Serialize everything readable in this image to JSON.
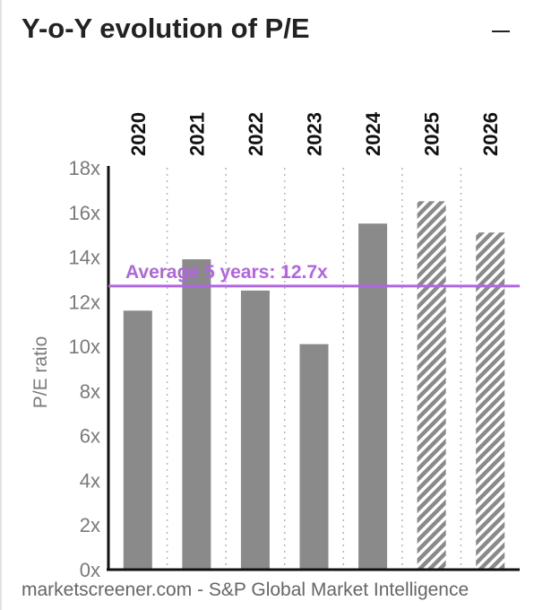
{
  "widget": {
    "title": "Y-o-Y evolution of P/E",
    "source": "marketscreener.com - S&P Global Market Intelligence"
  },
  "colors": {
    "bar": "#8a8a8a",
    "forecast_hatch": "#8a8a8a",
    "average_line": "#b066e0",
    "axis": "#111111",
    "tick_label": "#7a7a7a",
    "year_label": "#111111",
    "grid": "#b5b5b5"
  },
  "chart_data": {
    "type": "bar",
    "categories": [
      "2020",
      "2021",
      "2022",
      "2023",
      "2024",
      "2025",
      "2026"
    ],
    "values": [
      11.6,
      13.9,
      12.5,
      10.1,
      15.5,
      16.5,
      15.1
    ],
    "forecast": [
      false,
      false,
      false,
      false,
      false,
      true,
      true
    ],
    "ylabel": "P/E ratio",
    "ylim": [
      0,
      18
    ],
    "yticks": [
      "0x",
      "2x",
      "4x",
      "6x",
      "8x",
      "10x",
      "12x",
      "14x",
      "16x",
      "18x"
    ],
    "average": {
      "label": "Average 5 years: 12.7x",
      "value": 12.7
    },
    "grid": "vertical dotted lines between categories",
    "legend": "none"
  }
}
